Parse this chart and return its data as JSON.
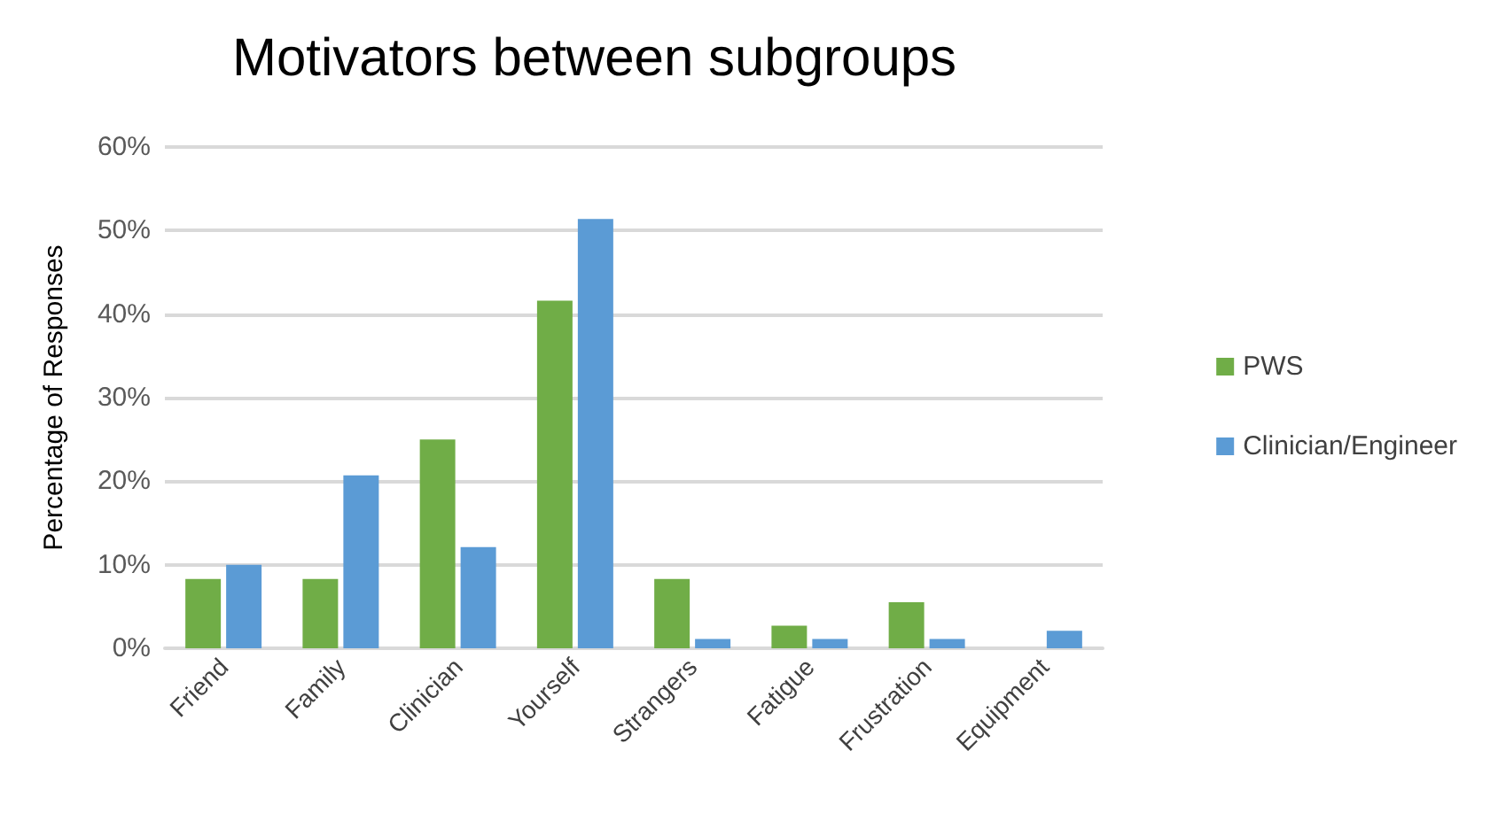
{
  "chart_data": {
    "type": "bar",
    "title": "Motivators between subgroups",
    "ylabel": "Percentage of Responses",
    "categories": [
      "Friend",
      "Family",
      "Clinician",
      "Yourself",
      "Strangers",
      "Fatigue",
      "Frustration",
      "Equipment"
    ],
    "series": [
      {
        "name": "PWS",
        "color": "#70ad47",
        "values": [
          8.3,
          8.3,
          25,
          41.6,
          8.3,
          2.7,
          5.5,
          0
        ]
      },
      {
        "name": "Clinician/Engineer",
        "color": "#5b9bd5",
        "values": [
          10,
          20.7,
          12.1,
          51.4,
          1.1,
          1.1,
          1.1,
          2.1
        ]
      }
    ],
    "ylim": [
      0,
      60
    ],
    "yticks": [
      {
        "value": 0,
        "label": "0%"
      },
      {
        "value": 10,
        "label": "10%"
      },
      {
        "value": 20,
        "label": "20%"
      },
      {
        "value": 30,
        "label": "30%"
      },
      {
        "value": 40,
        "label": "40%"
      },
      {
        "value": 50,
        "label": "50%"
      },
      {
        "value": 60,
        "label": "60%"
      }
    ],
    "grid": "y",
    "legend": "right"
  }
}
